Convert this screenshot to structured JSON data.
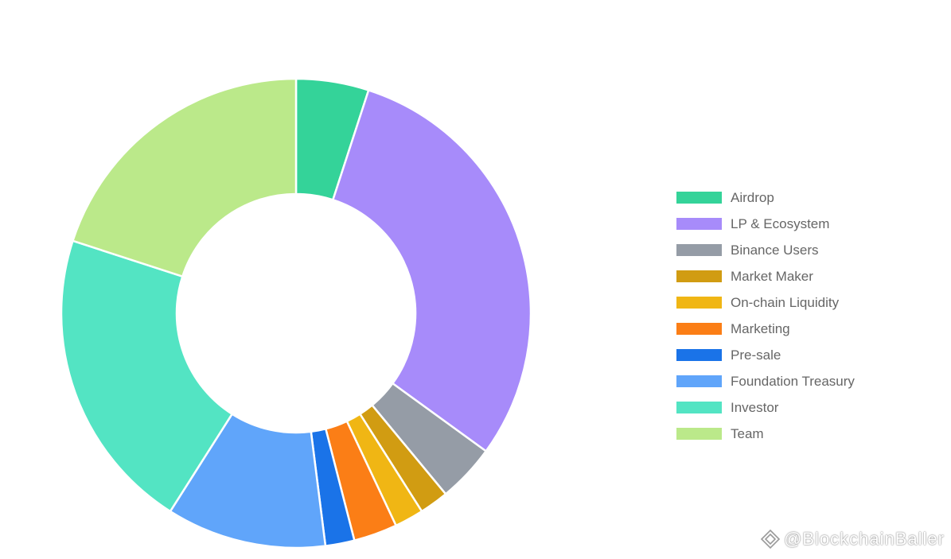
{
  "chart_data": {
    "type": "pie",
    "donut": true,
    "title": "",
    "legend_position": "right",
    "categories": [
      "Airdrop",
      "LP & Ecosystem",
      "Binance Users",
      "Market Maker",
      "On-chain Liquidity",
      "Marketing",
      "Pre-sale",
      "Foundation Treasury",
      "Investor",
      "Team"
    ],
    "values": [
      5,
      30,
      4,
      2,
      2,
      3,
      2,
      11,
      21,
      20
    ],
    "colors": [
      "#34d399",
      "#a78bfa",
      "#959ca6",
      "#d19c12",
      "#f0b614",
      "#fb7e16",
      "#1a73e8",
      "#60a5fa",
      "#53e4c3",
      "#bbe98a"
    ]
  },
  "watermark": {
    "text": "@BlockchainBaller"
  }
}
